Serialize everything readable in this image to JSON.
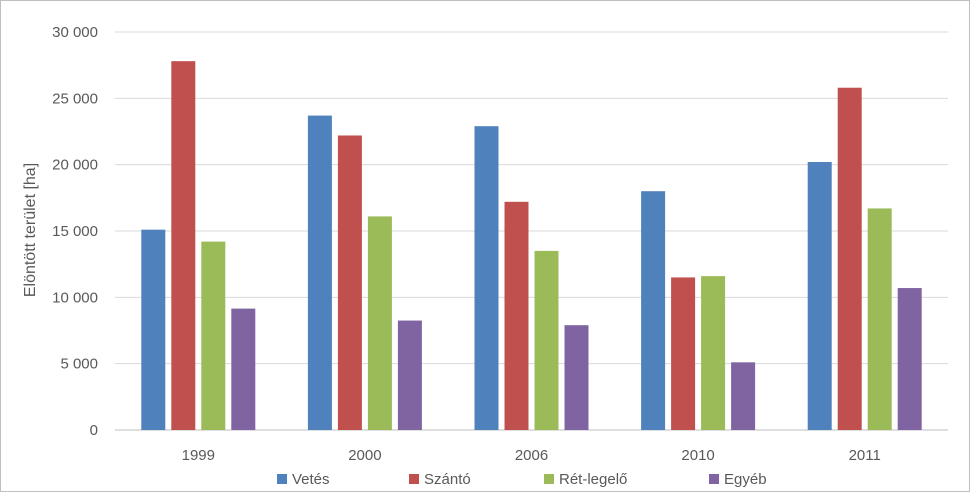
{
  "chart_data": {
    "type": "bar",
    "ylabel": "Elöntött terület [ha]",
    "xlabel": "",
    "ylim": [
      0,
      30000
    ],
    "yticks": [
      0,
      5000,
      10000,
      15000,
      20000,
      25000,
      30000
    ],
    "ytick_labels": [
      "0",
      "5 000",
      "10 000",
      "15 000",
      "20 000",
      "25 000",
      "30 000"
    ],
    "categories": [
      "1999",
      "2000",
      "2006",
      "2010",
      "2011"
    ],
    "series": [
      {
        "name": "Vetés",
        "color": "#4f81bd",
        "values": [
          15100,
          23700,
          22900,
          18000,
          20200
        ]
      },
      {
        "name": "Szántó",
        "color": "#c0504d",
        "values": [
          27800,
          22200,
          17200,
          11500,
          25800
        ]
      },
      {
        "name": "Rét-legelő",
        "color": "#9bbb59",
        "values": [
          14200,
          16100,
          13500,
          11600,
          16700
        ]
      },
      {
        "name": "Egyéb",
        "color": "#8064a2",
        "values": [
          9150,
          8250,
          7900,
          5100,
          10700
        ]
      }
    ],
    "grid": true,
    "legend": "bottom"
  }
}
